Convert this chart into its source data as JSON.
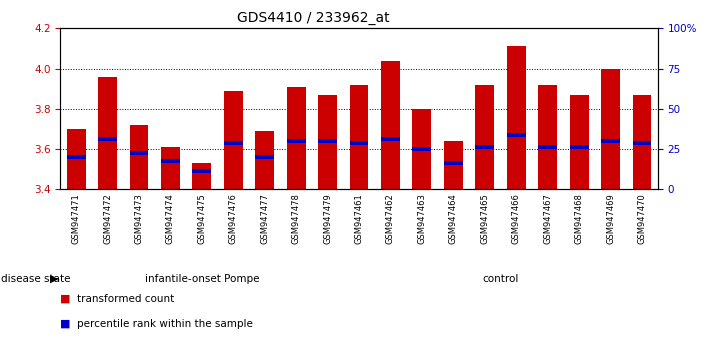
{
  "title": "GDS4410 / 233962_at",
  "samples": [
    "GSM947471",
    "GSM947472",
    "GSM947473",
    "GSM947474",
    "GSM947475",
    "GSM947476",
    "GSM947477",
    "GSM947478",
    "GSM947479",
    "GSM947461",
    "GSM947462",
    "GSM947463",
    "GSM947464",
    "GSM947465",
    "GSM947466",
    "GSM947467",
    "GSM947468",
    "GSM947469",
    "GSM947470"
  ],
  "bar_values": [
    3.7,
    3.96,
    3.72,
    3.61,
    3.53,
    3.89,
    3.69,
    3.91,
    3.87,
    3.92,
    4.04,
    3.8,
    3.64,
    3.92,
    4.11,
    3.92,
    3.87,
    4.0,
    3.87
  ],
  "percentile_values": [
    3.56,
    3.65,
    3.58,
    3.54,
    3.49,
    3.63,
    3.56,
    3.64,
    3.64,
    3.63,
    3.65,
    3.6,
    3.53,
    3.61,
    3.67,
    3.61,
    3.61,
    3.64,
    3.63
  ],
  "groups": [
    {
      "label": "infantile-onset Pompe",
      "start": 0,
      "end": 9,
      "color": "#aaddaa"
    },
    {
      "label": "control",
      "start": 9,
      "end": 19,
      "color": "#44cc44"
    }
  ],
  "bar_color": "#CC0000",
  "percentile_color": "#0000CC",
  "ylim_left": [
    3.4,
    4.2
  ],
  "ylim_right": [
    0,
    100
  ],
  "yticks_left": [
    3.4,
    3.6,
    3.8,
    4.0,
    4.2
  ],
  "yticks_right": [
    0,
    25,
    50,
    75,
    100
  ],
  "grid_values": [
    3.6,
    3.8,
    4.0
  ],
  "bar_width": 0.6,
  "background_color": "#ffffff",
  "disease_state_label": "disease state",
  "legend_items": [
    {
      "label": "transformed count",
      "color": "#CC0000"
    },
    {
      "label": "percentile rank within the sample",
      "color": "#0000CC"
    }
  ],
  "n_pompe": 9,
  "n_control": 10,
  "n_total": 19
}
